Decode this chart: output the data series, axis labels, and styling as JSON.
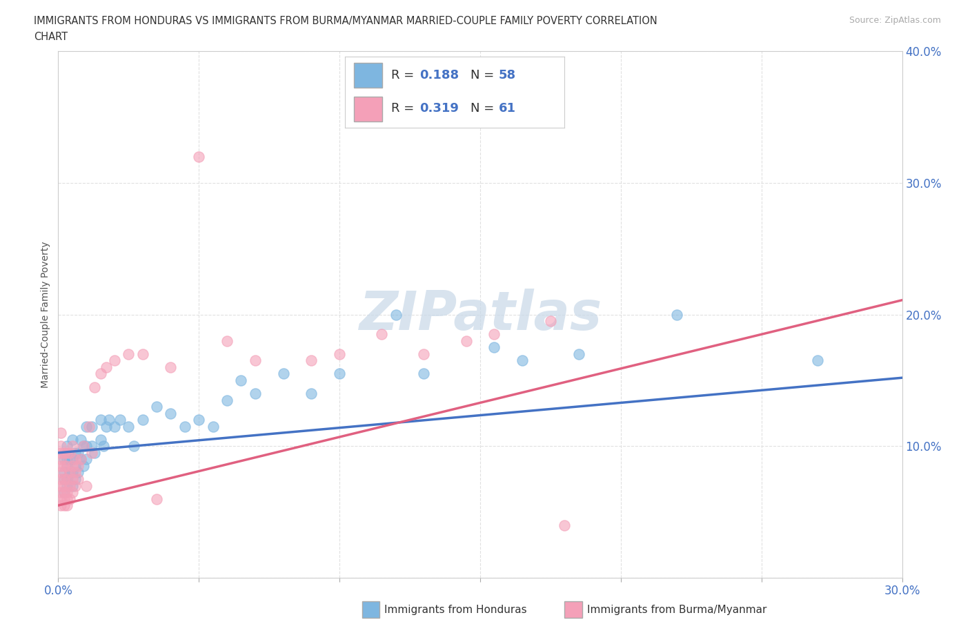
{
  "title_line1": "IMMIGRANTS FROM HONDURAS VS IMMIGRANTS FROM BURMA/MYANMAR MARRIED-COUPLE FAMILY POVERTY CORRELATION",
  "title_line2": "CHART",
  "source_text": "Source: ZipAtlas.com",
  "ylabel": "Married-Couple Family Poverty",
  "xlim": [
    0.0,
    0.3
  ],
  "ylim": [
    0.0,
    0.4
  ],
  "xticks": [
    0.0,
    0.05,
    0.1,
    0.15,
    0.2,
    0.25,
    0.3
  ],
  "yticks": [
    0.0,
    0.1,
    0.2,
    0.3,
    0.4
  ],
  "blue_color": "#7eb6e0",
  "pink_color": "#f4a0b8",
  "blue_line_color": "#4472c4",
  "pink_line_color": "#e06080",
  "blue_label": "Immigrants from Honduras",
  "pink_label": "Immigrants from Burma/Myanmar",
  "R_blue": 0.188,
  "N_blue": 58,
  "R_pink": 0.319,
  "N_pink": 61,
  "blue_trend_intercept": 0.095,
  "blue_trend_slope": 0.19,
  "pink_trend_intercept": 0.055,
  "pink_trend_slope": 0.52,
  "watermark": "ZIPatlas",
  "background_color": "#ffffff",
  "grid_color": "#e0e0e0",
  "blue_scatter_x": [
    0.002,
    0.002,
    0.002,
    0.002,
    0.003,
    0.003,
    0.003,
    0.003,
    0.003,
    0.004,
    0.004,
    0.005,
    0.005,
    0.005,
    0.005,
    0.006,
    0.006,
    0.006,
    0.007,
    0.007,
    0.008,
    0.008,
    0.009,
    0.009,
    0.01,
    0.01,
    0.01,
    0.012,
    0.012,
    0.013,
    0.015,
    0.015,
    0.016,
    0.017,
    0.018,
    0.02,
    0.022,
    0.025,
    0.027,
    0.03,
    0.035,
    0.04,
    0.045,
    0.05,
    0.055,
    0.06,
    0.065,
    0.07,
    0.08,
    0.09,
    0.1,
    0.12,
    0.13,
    0.155,
    0.165,
    0.185,
    0.22,
    0.27
  ],
  "blue_scatter_y": [
    0.065,
    0.075,
    0.08,
    0.09,
    0.07,
    0.075,
    0.085,
    0.09,
    0.1,
    0.08,
    0.09,
    0.07,
    0.08,
    0.09,
    0.105,
    0.075,
    0.085,
    0.095,
    0.08,
    0.095,
    0.09,
    0.105,
    0.085,
    0.1,
    0.09,
    0.1,
    0.115,
    0.1,
    0.115,
    0.095,
    0.105,
    0.12,
    0.1,
    0.115,
    0.12,
    0.115,
    0.12,
    0.115,
    0.1,
    0.12,
    0.13,
    0.125,
    0.115,
    0.12,
    0.115,
    0.135,
    0.15,
    0.14,
    0.155,
    0.14,
    0.155,
    0.2,
    0.155,
    0.175,
    0.165,
    0.17,
    0.2,
    0.165
  ],
  "pink_scatter_x": [
    0.001,
    0.001,
    0.001,
    0.001,
    0.001,
    0.001,
    0.001,
    0.001,
    0.001,
    0.001,
    0.001,
    0.002,
    0.002,
    0.002,
    0.002,
    0.002,
    0.002,
    0.002,
    0.003,
    0.003,
    0.003,
    0.003,
    0.003,
    0.003,
    0.004,
    0.004,
    0.004,
    0.004,
    0.005,
    0.005,
    0.005,
    0.005,
    0.006,
    0.006,
    0.006,
    0.007,
    0.007,
    0.008,
    0.009,
    0.01,
    0.011,
    0.012,
    0.013,
    0.015,
    0.017,
    0.02,
    0.025,
    0.03,
    0.035,
    0.04,
    0.05,
    0.06,
    0.07,
    0.09,
    0.1,
    0.115,
    0.13,
    0.145,
    0.155,
    0.175,
    0.18
  ],
  "pink_scatter_y": [
    0.055,
    0.06,
    0.065,
    0.07,
    0.075,
    0.08,
    0.085,
    0.09,
    0.095,
    0.1,
    0.11,
    0.055,
    0.06,
    0.065,
    0.07,
    0.075,
    0.085,
    0.095,
    0.055,
    0.06,
    0.065,
    0.075,
    0.085,
    0.095,
    0.06,
    0.07,
    0.08,
    0.095,
    0.065,
    0.075,
    0.085,
    0.1,
    0.07,
    0.08,
    0.09,
    0.075,
    0.085,
    0.09,
    0.1,
    0.07,
    0.115,
    0.095,
    0.145,
    0.155,
    0.16,
    0.165,
    0.17,
    0.17,
    0.06,
    0.16,
    0.32,
    0.18,
    0.165,
    0.165,
    0.17,
    0.185,
    0.17,
    0.18,
    0.185,
    0.195,
    0.04
  ]
}
